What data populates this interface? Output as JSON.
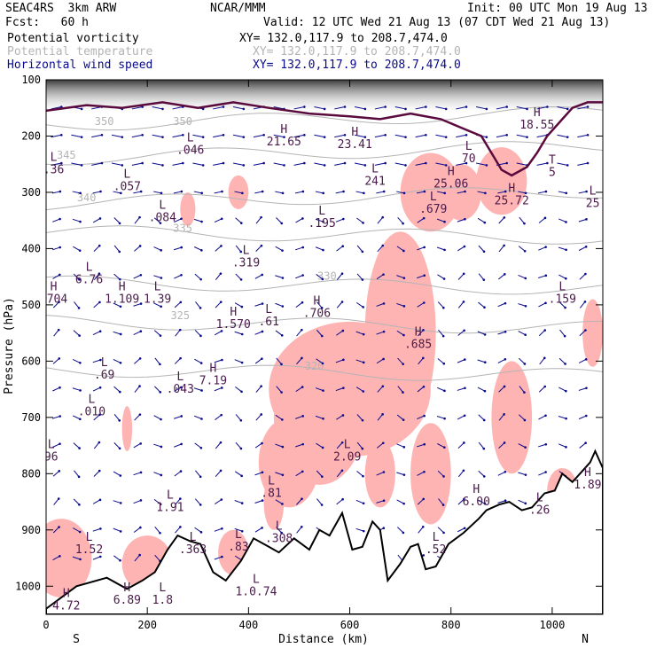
{
  "header": {
    "model": "SEAC4RS  3km ARW",
    "org": "NCAR/MMM",
    "init": "Init: 00 UTC Mon 19 Aug 13",
    "fcst": "Fcst:   60 h",
    "valid": "Valid: 12 UTC Wed 21 Aug 13 (07 CDT Wed 21 Aug 13)"
  },
  "legend": [
    {
      "name": "Potential vorticity",
      "xy": "XY= 132.0,117.9 to 208.7,474.0",
      "color": "#000000"
    },
    {
      "name": "Potential temperature",
      "xy": "XY= 132.0,117.9 to 208.7,474.0",
      "color": "#b4b4b4"
    },
    {
      "name": "Horizontal wind speed",
      "xy": "XY= 132.0,117.9 to 208.7,474.0",
      "color": "#0a0a8c"
    }
  ],
  "colors": {
    "pv_fill": "#ffb4b4",
    "theta": "#b4b4b4",
    "wind": "#0a0a8c",
    "terrain": "#000000",
    "pv_contour": "#5a0a3c",
    "label": "#4a1a4a"
  },
  "chart_data": {
    "type": "cross-section",
    "xlabel": "Distance (km)",
    "ylabel": "Pressure (hPa)",
    "xlim": [
      0,
      1100
    ],
    "ylim": [
      1050,
      100
    ],
    "x_ticks": [
      0,
      200,
      400,
      600,
      800,
      1000
    ],
    "y_ticks": [
      100,
      200,
      300,
      400,
      500,
      600,
      700,
      800,
      900,
      1000
    ],
    "x_tick_labels": [
      "0",
      "200",
      "400",
      "600",
      "800",
      "1000"
    ],
    "y_tick_labels": [
      "100",
      "200",
      "300",
      "400",
      "500",
      "600",
      "700",
      "800",
      "900",
      "1000"
    ],
    "left_end": "S",
    "right_end": "N",
    "theta_labels": [
      {
        "text": "350",
        "x": 115,
        "p": 180
      },
      {
        "text": "350",
        "x": 270,
        "p": 180
      },
      {
        "text": "345",
        "x": 40,
        "p": 240
      },
      {
        "text": "340",
        "x": 80,
        "p": 316
      },
      {
        "text": "335",
        "x": 270,
        "p": 370
      },
      {
        "text": "325",
        "x": 265,
        "p": 525
      },
      {
        "text": "320",
        "x": 530,
        "p": 615
      },
      {
        "text": "330",
        "x": 555,
        "p": 455
      }
    ],
    "extrema": [
      {
        "type": "H",
        "value": "21.65",
        "x": 470,
        "p": 210
      },
      {
        "type": "H",
        "value": "23.41",
        "x": 610,
        "p": 215
      },
      {
        "type": "H",
        "value": "18.55",
        "x": 970,
        "p": 180
      },
      {
        "type": "L",
        "value": "70",
        "x": 835,
        "p": 240
      },
      {
        "type": "L",
        "value": ".046",
        "x": 285,
        "p": 225
      },
      {
        "type": "L",
        "value": ".36",
        "x": 15,
        "p": 260
      },
      {
        "type": "L",
        "value": ".057",
        "x": 160,
        "p": 290
      },
      {
        "type": "L",
        "value": "241",
        "x": 650,
        "p": 280
      },
      {
        "type": "H",
        "value": "25.06",
        "x": 800,
        "p": 285
      },
      {
        "type": "T",
        "value": "5",
        "x": 1000,
        "p": 265
      },
      {
        "type": "H",
        "value": "25.72",
        "x": 920,
        "p": 315
      },
      {
        "type": "L",
        "value": "25",
        "x": 1080,
        "p": 320
      },
      {
        "type": "L",
        "value": ".084",
        "x": 230,
        "p": 345
      },
      {
        "type": "L",
        "value": ".195",
        "x": 545,
        "p": 355
      },
      {
        "type": "L",
        "value": ".679",
        "x": 765,
        "p": 330
      },
      {
        "type": "L",
        "value": ".319",
        "x": 395,
        "p": 425
      },
      {
        "type": "L",
        "value": "6.76",
        "x": 85,
        "p": 455
      },
      {
        "type": "H",
        "value": ".704",
        "x": 15,
        "p": 490
      },
      {
        "type": "H",
        "value": "1.109",
        "x": 150,
        "p": 490
      },
      {
        "type": "L",
        "value": "1.39",
        "x": 220,
        "p": 490
      },
      {
        "type": "H",
        "value": "1.570",
        "x": 370,
        "p": 535
      },
      {
        "type": "L",
        "value": ".61",
        "x": 440,
        "p": 530
      },
      {
        "type": "H",
        "value": ".706",
        "x": 535,
        "p": 515
      },
      {
        "type": "L",
        "value": ".159",
        "x": 1020,
        "p": 490
      },
      {
        "type": "H",
        "value": ".685",
        "x": 735,
        "p": 570
      },
      {
        "type": "L",
        "value": ".69",
        "x": 115,
        "p": 625
      },
      {
        "type": "L",
        "value": ".043",
        "x": 265,
        "p": 650
      },
      {
        "type": "H",
        "value": "7.19",
        "x": 330,
        "p": 635
      },
      {
        "type": "L",
        "value": ".010",
        "x": 90,
        "p": 690
      },
      {
        "type": "L",
        "value": "2.09",
        "x": 595,
        "p": 770
      },
      {
        "type": "L",
        "value": ".81",
        "x": 445,
        "p": 835
      },
      {
        "type": "H",
        "value": "6.00",
        "x": 850,
        "p": 850
      },
      {
        "type": "H",
        "value": "1.89",
        "x": 1070,
        "p": 820
      },
      {
        "type": "L",
        "value": "1.91",
        "x": 245,
        "p": 860
      },
      {
        "type": "L",
        "value": ".363",
        "x": 290,
        "p": 935
      },
      {
        "type": "L",
        "value": ".83",
        "x": 380,
        "p": 930
      },
      {
        "type": "L",
        "value": ".308",
        "x": 460,
        "p": 915
      },
      {
        "type": "L",
        "value": "1.52",
        "x": 85,
        "p": 935
      },
      {
        "type": "L",
        "value": ".52",
        "x": 770,
        "p": 935
      },
      {
        "type": "H",
        "value": "6.89",
        "x": 160,
        "p": 1025
      },
      {
        "type": "L",
        "value": "1.8",
        "x": 230,
        "p": 1025
      },
      {
        "type": "L",
        "value": "1.0.74",
        "x": 415,
        "p": 1010
      },
      {
        "type": "H",
        "value": "4.72",
        "x": 40,
        "p": 1035
      },
      {
        "type": "L",
        "value": ".26",
        "x": 975,
        "p": 865
      },
      {
        "type": "L",
        "value": "96",
        "x": 10,
        "p": 770
      }
    ],
    "terrain_profile": [
      [
        0,
        1040
      ],
      [
        60,
        1000
      ],
      [
        120,
        985
      ],
      [
        160,
        1005
      ],
      [
        190,
        990
      ],
      [
        215,
        975
      ],
      [
        240,
        935
      ],
      [
        260,
        910
      ],
      [
        285,
        920
      ],
      [
        305,
        925
      ],
      [
        330,
        975
      ],
      [
        355,
        990
      ],
      [
        385,
        955
      ],
      [
        410,
        915
      ],
      [
        440,
        930
      ],
      [
        460,
        940
      ],
      [
        490,
        915
      ],
      [
        520,
        935
      ],
      [
        540,
        900
      ],
      [
        560,
        910
      ],
      [
        585,
        870
      ],
      [
        605,
        935
      ],
      [
        625,
        930
      ],
      [
        645,
        885
      ],
      [
        660,
        900
      ],
      [
        675,
        990
      ],
      [
        700,
        960
      ],
      [
        720,
        930
      ],
      [
        735,
        925
      ],
      [
        750,
        970
      ],
      [
        770,
        965
      ],
      [
        795,
        925
      ],
      [
        825,
        905
      ],
      [
        855,
        880
      ],
      [
        870,
        865
      ],
      [
        895,
        855
      ],
      [
        915,
        850
      ],
      [
        940,
        865
      ],
      [
        960,
        860
      ],
      [
        985,
        835
      ],
      [
        1005,
        830
      ],
      [
        1020,
        800
      ],
      [
        1040,
        815
      ],
      [
        1060,
        795
      ],
      [
        1075,
        780
      ],
      [
        1085,
        760
      ],
      [
        1100,
        790
      ]
    ],
    "tropopause_profile": [
      [
        0,
        155
      ],
      [
        80,
        145
      ],
      [
        150,
        150
      ],
      [
        230,
        140
      ],
      [
        300,
        150
      ],
      [
        370,
        140
      ],
      [
        440,
        150
      ],
      [
        520,
        160
      ],
      [
        600,
        165
      ],
      [
        660,
        170
      ],
      [
        720,
        160
      ],
      [
        780,
        170
      ],
      [
        820,
        185
      ],
      [
        860,
        200
      ],
      [
        880,
        230
      ],
      [
        900,
        260
      ],
      [
        920,
        270
      ],
      [
        950,
        255
      ],
      [
        970,
        230
      ],
      [
        990,
        200
      ],
      [
        1010,
        180
      ],
      [
        1040,
        150
      ],
      [
        1070,
        140
      ],
      [
        1100,
        140
      ]
    ],
    "wind_barb_columns": [
      20,
      60,
      100,
      140,
      180,
      220,
      260,
      300,
      340,
      380,
      420,
      460,
      500,
      540,
      580,
      620,
      660,
      700,
      740,
      780,
      820,
      860,
      900,
      940,
      980,
      1020,
      1060
    ],
    "wind_barb_levels": [
      150,
      200,
      250,
      300,
      350,
      400,
      450,
      500,
      550,
      600,
      650,
      700,
      750,
      800,
      850,
      900,
      950
    ]
  }
}
